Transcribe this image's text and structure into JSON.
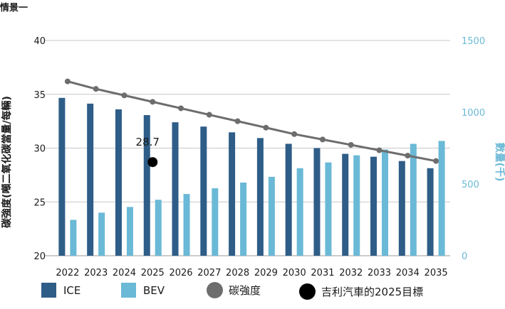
{
  "title": "情景一",
  "chart_data": {
    "type": "bar",
    "categories": [
      "2022",
      "2023",
      "2024",
      "2025",
      "2026",
      "2027",
      "2028",
      "2029",
      "2030",
      "2031",
      "2032",
      "2033",
      "2034",
      "2035"
    ],
    "series": [
      {
        "name": "ICE",
        "type": "bar",
        "axis": "right",
        "color": "#2e5d87",
        "values": [
          1100,
          1060,
          1020,
          980,
          930,
          900,
          860,
          820,
          780,
          750,
          710,
          690,
          660,
          610
        ]
      },
      {
        "name": "BEV",
        "type": "bar",
        "axis": "right",
        "color": "#6ab9d6",
        "values": [
          250,
          300,
          340,
          390,
          430,
          470,
          510,
          550,
          610,
          650,
          700,
          740,
          780,
          800
        ]
      },
      {
        "name": "碳強度",
        "type": "line",
        "axis": "left",
        "color": "#6d6d6d",
        "values": [
          36.2,
          35.5,
          34.9,
          34.3,
          33.7,
          33.1,
          32.5,
          31.9,
          31.3,
          30.8,
          30.3,
          29.8,
          29.3,
          28.8
        ]
      }
    ],
    "target": {
      "name": "吉利汽車的2025目標",
      "x": "2025",
      "y": 28.7,
      "label": "28.7",
      "color": "#000000"
    },
    "ylabel_left": "碳強度(噸二氧化碳當量/每輛)",
    "ylabel_right": "數量(千)",
    "ylim_left": [
      20,
      40
    ],
    "yticks_left": [
      "20",
      "25",
      "30",
      "35",
      "40"
    ],
    "ylim_right": [
      0,
      1500
    ],
    "yticks_right": [
      "0",
      "500",
      "1000",
      "1500"
    ],
    "right_axis_color": "#6ab9d6",
    "grid": true,
    "legend_position": "bottom"
  }
}
